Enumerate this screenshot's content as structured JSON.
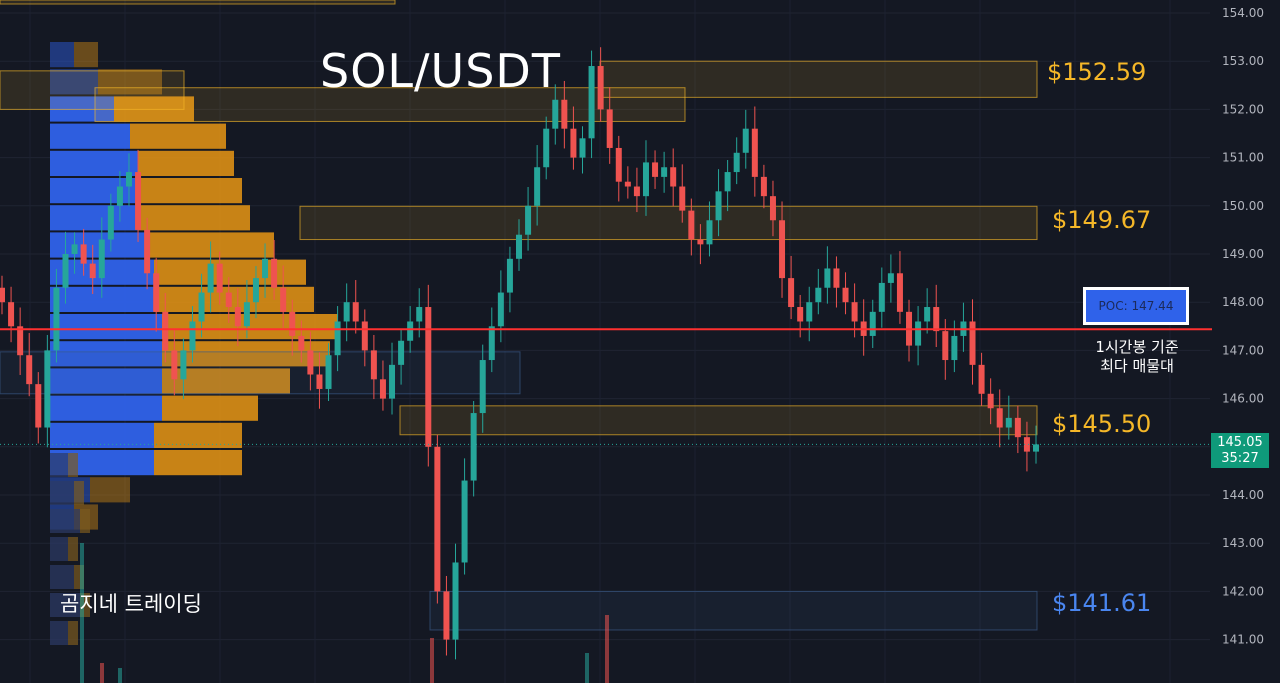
{
  "title": "SOL/USDT",
  "watermark": "곰지네 트레이딩",
  "poc_label": "POC: 147.44",
  "poc_note_line1": "1시간봉 기준",
  "poc_note_line2": "최다 매물대",
  "current_price": "145.05",
  "countdown": "35:27",
  "levels": {
    "l1": "$152.59",
    "l2": "$149.67",
    "l3": "$145.50",
    "l4": "$141.61"
  },
  "colors": {
    "background": "#141823",
    "up": "#26a69a",
    "down": "#ef5350",
    "poc_line": "#ff3030",
    "volume_blue": "#2f62ea",
    "volume_orange": "#e89614",
    "level_gold": "#f5b728",
    "level_blue": "#4a86f0"
  },
  "chart_data": {
    "type": "candlestick",
    "pair": "SOL/USDT",
    "timeframe_note": "1시간봉",
    "y_axis": {
      "min": 140,
      "max": 154,
      "ticks": [
        "154.00",
        "153.00",
        "152.00",
        "151.00",
        "150.00",
        "149.00",
        "148.00",
        "147.00",
        "146.00",
        "145.00",
        "144.00",
        "143.00",
        "142.00",
        "141.00"
      ]
    },
    "poc": 147.44,
    "current_price": 145.05,
    "levels": [
      152.59,
      149.67,
      145.5,
      141.61
    ],
    "closes": [
      148.0,
      147.5,
      146.9,
      146.3,
      145.4,
      147.0,
      148.3,
      149.0,
      149.2,
      148.8,
      148.5,
      149.3,
      150.0,
      150.4,
      150.7,
      149.5,
      148.6,
      147.8,
      147.0,
      146.4,
      147.0,
      147.6,
      148.2,
      148.8,
      148.2,
      147.9,
      147.5,
      148.0,
      148.5,
      148.9,
      148.3,
      147.8,
      147.3,
      147.0,
      146.5,
      146.2,
      146.9,
      147.6,
      148.0,
      147.6,
      147.0,
      146.4,
      146.0,
      146.7,
      147.2,
      147.6,
      147.9,
      145.0,
      142.0,
      141.0,
      142.6,
      144.3,
      145.7,
      146.8,
      147.5,
      148.2,
      148.9,
      149.4,
      150.0,
      150.8,
      151.6,
      152.2,
      151.6,
      151.0,
      151.4,
      152.9,
      152.0,
      151.2,
      150.5,
      150.4,
      150.2,
      150.9,
      150.6,
      150.8,
      150.4,
      149.9,
      149.3,
      149.2,
      149.7,
      150.3,
      150.7,
      151.1,
      151.6,
      150.6,
      150.2,
      149.7,
      148.5,
      147.9,
      147.6,
      148.0,
      148.3,
      148.7,
      148.3,
      148.0,
      147.6,
      147.3,
      147.8,
      148.4,
      148.6,
      147.8,
      147.1,
      147.6,
      147.9,
      147.4,
      146.8,
      147.3,
      147.6,
      146.7,
      146.1,
      145.8,
      145.4,
      145.6,
      145.2,
      144.9,
      145.05
    ],
    "volume_profile": {
      "note": "horizontal volume bars per price bucket (relative)",
      "buy_relative": [
        0.3,
        0.6,
        0.8,
        1.0,
        1.1,
        1.1,
        1.1,
        1.2,
        1.3,
        1.3,
        1.4,
        1.4,
        1.4,
        1.4,
        1.3,
        1.3,
        0.5,
        0.3
      ],
      "sell_relative": [
        0.3,
        0.8,
        1.0,
        1.2,
        1.2,
        1.3,
        1.4,
        1.6,
        1.9,
        2.0,
        2.2,
        2.1,
        1.6,
        1.2,
        1.1,
        1.1,
        0.5,
        0.3
      ]
    }
  }
}
